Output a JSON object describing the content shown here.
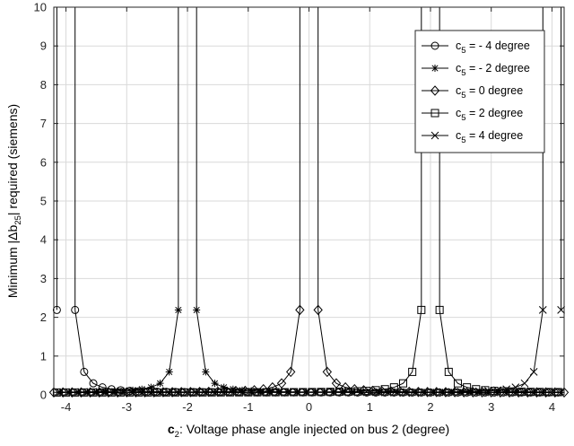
{
  "chart_data": {
    "type": "line",
    "xlabel_bold": "c",
    "xlabel_sub": "2",
    "xlabel_rest": ": Voltage phase angle injected on bus 2 (degree)",
    "ylabel_pre": "Minimum |",
    "ylabel_delta": "Δ",
    "ylabel_b": "b",
    "ylabel_sub": "25",
    "ylabel_post": "| required (siemens)",
    "xlim": [
      -4.2,
      4.2
    ],
    "ylim": [
      0,
      10
    ],
    "xticks": [
      -4,
      -3,
      -2,
      -1,
      0,
      1,
      2,
      3,
      4
    ],
    "yticks": [
      0,
      1,
      2,
      3,
      4,
      5,
      6,
      7,
      8,
      9,
      10
    ],
    "grid": true,
    "legend_position": "top-right",
    "series": [
      {
        "name_pre": "c",
        "name_sub": "5",
        "name_post": " = - 4 degree",
        "marker": "circle",
        "singularity": -4.0
      },
      {
        "name_pre": "c",
        "name_sub": "5",
        "name_post": " = - 2 degree",
        "marker": "asterisk",
        "singularity": -2.0
      },
      {
        "name_pre": "c",
        "name_sub": "5",
        "name_post": " = 0 degree",
        "marker": "diamond",
        "singularity": 0.0
      },
      {
        "name_pre": "c",
        "name_sub": "5",
        "name_post": " = 2 degree",
        "marker": "square",
        "singularity": 2.0
      },
      {
        "name_pre": "c",
        "name_sub": "5",
        "name_post": " = 4 degree",
        "marker": "x",
        "singularity": 4.0
      }
    ]
  }
}
